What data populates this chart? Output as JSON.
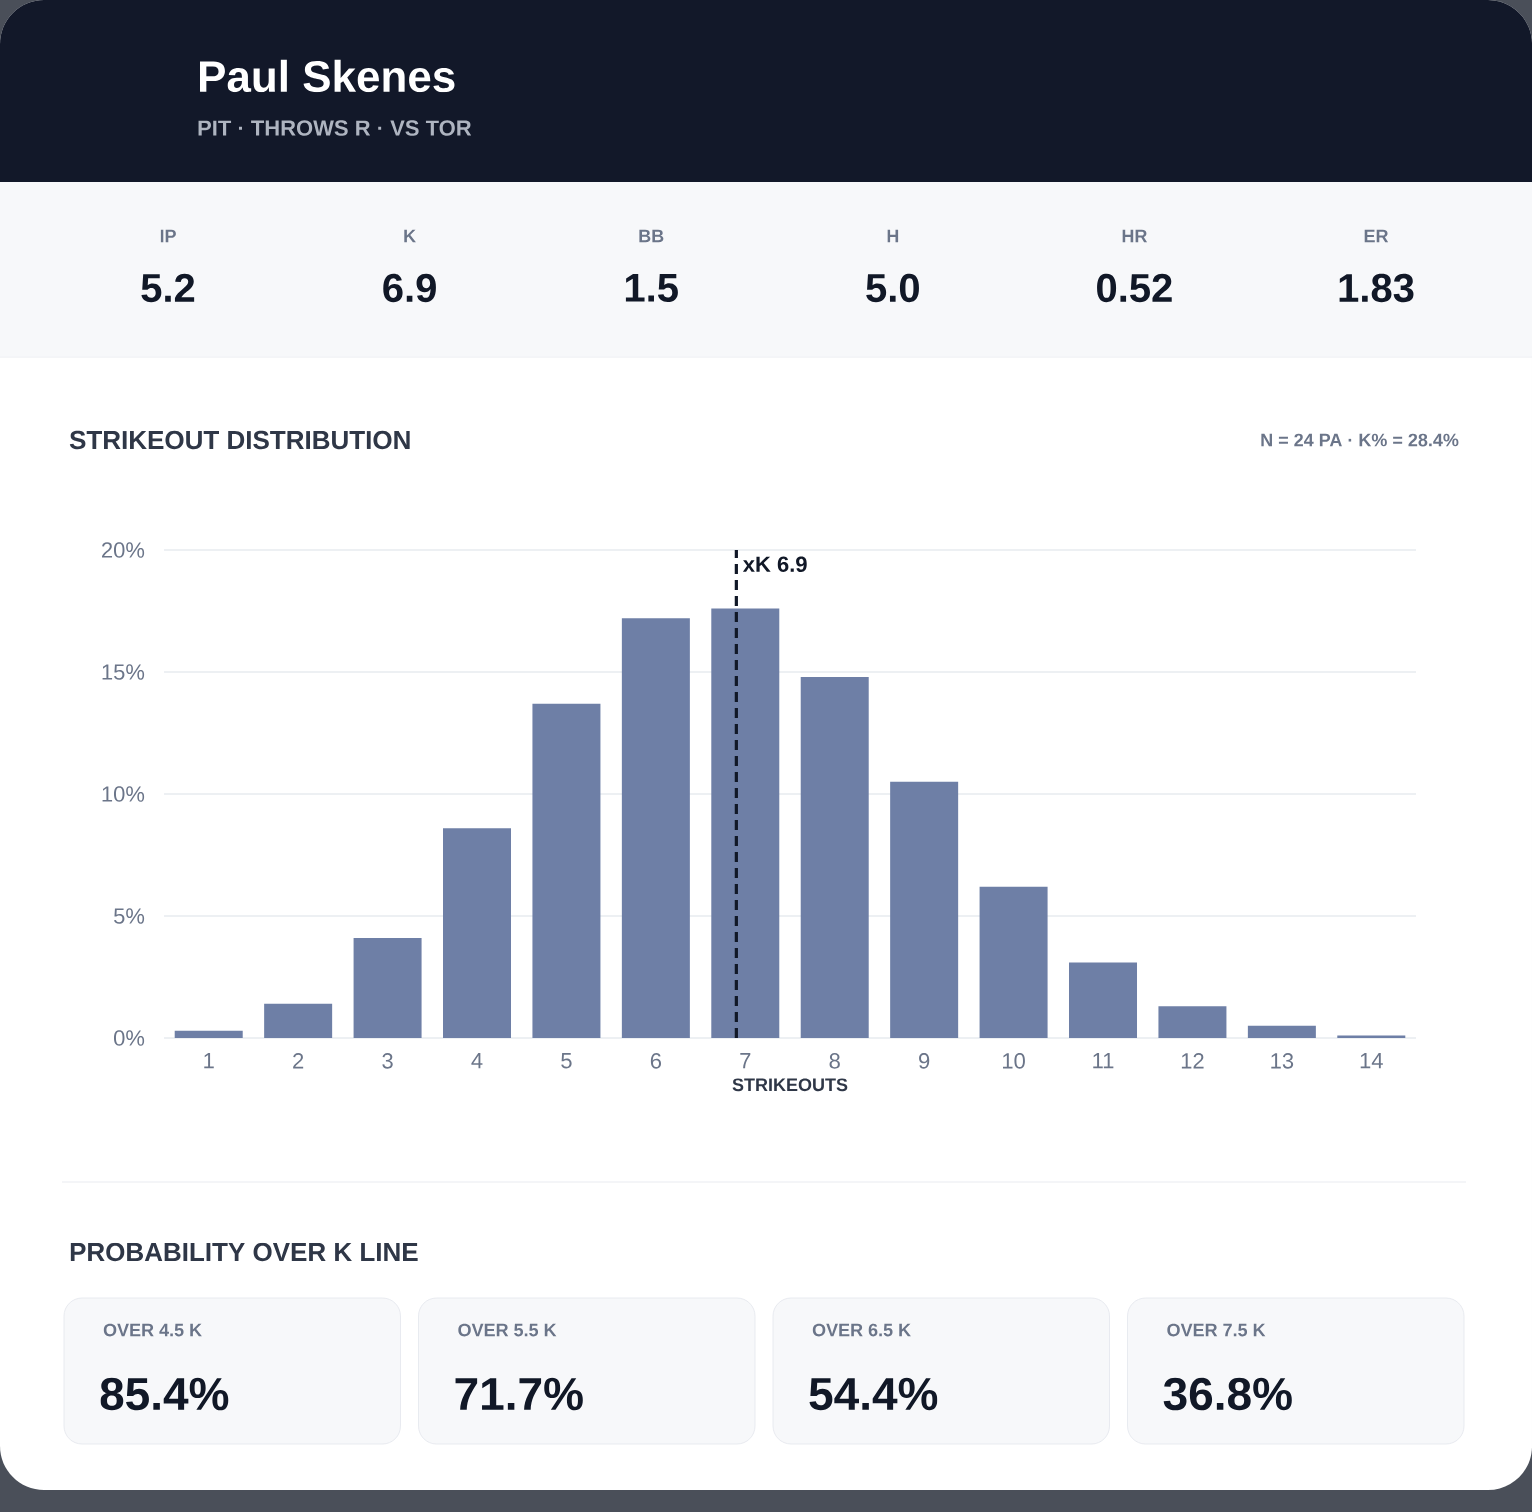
{
  "chart_data": [
    {
      "type": "other",
      "title": "Paul Skenes",
      "subtitle": "PIT · THROWS R · VS TOR",
      "categories": [
        "IP",
        "K",
        "BB",
        "H",
        "HR",
        "ER"
      ],
      "values": [
        5.2,
        6.9,
        1.5,
        5.0,
        0.52,
        1.83
      ],
      "value_labels": [
        "5.2",
        "6.9",
        "1.5",
        "5.0",
        "0.52",
        "1.83"
      ]
    },
    {
      "type": "bar",
      "title": "STRIKEOUT DISTRIBUTION",
      "subtitle": "N = 24 PA · K% = 28.4%",
      "xlabel": "STRIKEOUTS",
      "x": [
        1,
        2,
        3,
        4,
        5,
        6,
        7,
        8,
        9,
        10,
        11,
        12,
        13,
        14
      ],
      "values": [
        0.3,
        1.4,
        4.1,
        8.6,
        13.7,
        17.2,
        17.6,
        14.8,
        10.5,
        6.2,
        3.1,
        1.3,
        0.5,
        0.1
      ],
      "color": "#6e7fa6",
      "xlim": [
        0.5,
        14.5
      ],
      "xticks": [
        1,
        2,
        3,
        4,
        5,
        6,
        7,
        8,
        9,
        10,
        11,
        12,
        13,
        14
      ],
      "ylim": [
        0,
        20
      ],
      "yticks": [
        {
          "value": 0,
          "label": "0%"
        },
        {
          "value": 5,
          "label": "5%"
        },
        {
          "value": 10,
          "label": "10%"
        },
        {
          "value": 15,
          "label": "15%"
        },
        {
          "value": 20,
          "label": "20%"
        }
      ],
      "grid": "y",
      "ref_lines": [
        {
          "axis": "x",
          "value": 6.9,
          "label": "xK 6.9",
          "color": "#111827",
          "line_style": "dashed"
        }
      ]
    },
    {
      "type": "other",
      "title": "PROBABILITY OVER K LINE",
      "categories": [
        "OVER 4.5 K",
        "OVER 5.5 K",
        "OVER 6.5 K",
        "OVER 7.5 K"
      ],
      "values": [
        85.4,
        71.7,
        54.4,
        36.8
      ],
      "value_labels": [
        "85.4%",
        "71.7%",
        "54.4%",
        "36.8%"
      ]
    }
  ]
}
